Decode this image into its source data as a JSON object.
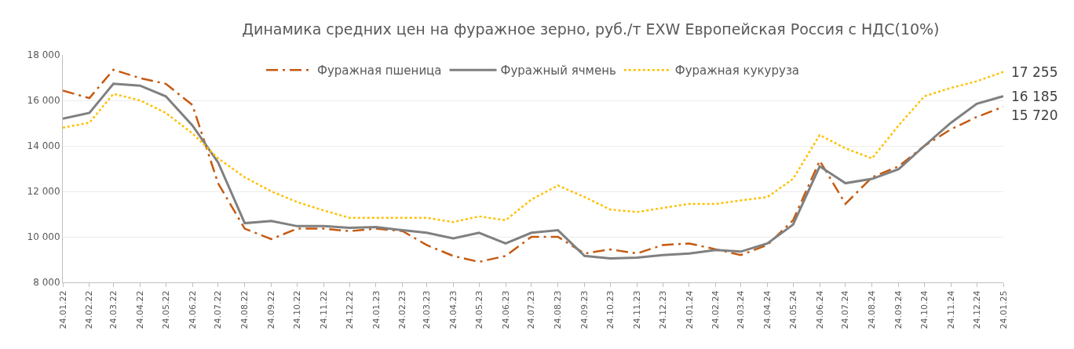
{
  "chart_data": {
    "type": "line",
    "title": "Динамика средних цен на фуражное зерно, руб./т EXW Европейская Россия с НДС(10%)",
    "x": [
      "2022-01-24",
      "2022-02-24",
      "2022-03-24",
      "2022-04-24",
      "2022-05-24",
      "2022-06-24",
      "2022-07-24",
      "2022-08-24",
      "2022-09-24",
      "2022-10-24",
      "2022-11-24",
      "2022-12-24",
      "2023-01-24",
      "2023-02-24",
      "2023-03-24",
      "2023-04-24",
      "2023-05-24",
      "2023-06-24",
      "2023-07-24",
      "2023-08-24",
      "2023-09-24",
      "2023-10-24",
      "2023-11-24",
      "2023-12-24",
      "2024-01-24",
      "2024-02-24",
      "2024-03-24",
      "2024-04-24",
      "2024-05-24",
      "2024-06-24",
      "2024-07-24",
      "2024-08-24",
      "2024-09-24",
      "2024-10-24",
      "2024-11-24",
      "2024-12-24",
      "2025-01-24"
    ],
    "series": [
      {
        "name": "Фуражная пшеница",
        "color": "#c55a11",
        "line_style": "dashed",
        "values": [
          16430,
          16100,
          17350,
          16980,
          16730,
          15800,
          12350,
          10360,
          9900,
          10360,
          10360,
          10250,
          10360,
          10250,
          9640,
          9160,
          8900,
          9160,
          10000,
          10000,
          9270,
          9450,
          9270,
          9640,
          9710,
          9450,
          9200,
          9640,
          10730,
          13350,
          11450,
          12620,
          13100,
          14000,
          14730,
          15270,
          15720
        ]
      },
      {
        "name": "Фуражный ячмень",
        "color": "#808080",
        "line_style": "solid",
        "values": [
          15200,
          15450,
          16730,
          16650,
          16180,
          14900,
          13270,
          10600,
          10700,
          10470,
          10470,
          10400,
          10430,
          10290,
          10180,
          9930,
          10180,
          9710,
          10180,
          10290,
          9160,
          9050,
          9090,
          9200,
          9270,
          9420,
          9350,
          9710,
          10540,
          13100,
          12360,
          12550,
          12980,
          14000,
          15020,
          15850,
          16185
        ]
      },
      {
        "name": "Фуражная кукуруза",
        "color": "#ffc000",
        "line_style": "dotted",
        "values": [
          14800,
          15020,
          16290,
          16000,
          15450,
          14550,
          13450,
          12620,
          12000,
          11530,
          11160,
          10840,
          10840,
          10840,
          10840,
          10650,
          10900,
          10730,
          11640,
          12260,
          11750,
          11200,
          11090,
          11270,
          11450,
          11450,
          11600,
          11750,
          12550,
          14480,
          13890,
          13450,
          14900,
          16180,
          16550,
          16840,
          17255
        ]
      }
    ],
    "annotations": [
      {
        "text": "17 255",
        "x": "2025-01-24",
        "y": 17255
      },
      {
        "text": "16 185",
        "x": "2025-01-24",
        "y": 16185
      },
      {
        "text": "15 720",
        "x": "2025-01-24",
        "y": 15720
      }
    ],
    "xlim": [
      "2022-01-24",
      "2025-01-24"
    ],
    "xticks": [
      {
        "value": "2022-01-24",
        "label": "24.01.22"
      },
      {
        "value": "2022-02-24",
        "label": "24.02.22"
      },
      {
        "value": "2022-03-24",
        "label": "24.03.22"
      },
      {
        "value": "2022-04-24",
        "label": "24.04.22"
      },
      {
        "value": "2022-05-24",
        "label": "24.05.22"
      },
      {
        "value": "2022-06-24",
        "label": "24.06.22"
      },
      {
        "value": "2022-07-24",
        "label": "24.07.22"
      },
      {
        "value": "2022-08-24",
        "label": "24.08.22"
      },
      {
        "value": "2022-09-24",
        "label": "24.09.22"
      },
      {
        "value": "2022-10-24",
        "label": "24.10.22"
      },
      {
        "value": "2022-11-24",
        "label": "24.11.22"
      },
      {
        "value": "2022-12-24",
        "label": "24.12.22"
      },
      {
        "value": "2023-01-24",
        "label": "24.01.23"
      },
      {
        "value": "2023-02-24",
        "label": "24.02.23"
      },
      {
        "value": "2023-03-24",
        "label": "24.03.23"
      },
      {
        "value": "2023-04-24",
        "label": "24.04.23"
      },
      {
        "value": "2023-05-24",
        "label": "24.05.23"
      },
      {
        "value": "2023-06-24",
        "label": "24.06.23"
      },
      {
        "value": "2023-07-24",
        "label": "24.07.23"
      },
      {
        "value": "2023-08-24",
        "label": "24.08.23"
      },
      {
        "value": "2023-09-24",
        "label": "24.09.23"
      },
      {
        "value": "2023-10-24",
        "label": "24.10.23"
      },
      {
        "value": "2023-11-24",
        "label": "24.11.23"
      },
      {
        "value": "2023-12-24",
        "label": "24.12.23"
      },
      {
        "value": "2024-01-24",
        "label": "24.01.24"
      },
      {
        "value": "2024-02-24",
        "label": "24.02.24"
      },
      {
        "value": "2024-03-24",
        "label": "24.03.24"
      },
      {
        "value": "2024-04-24",
        "label": "24.04.24"
      },
      {
        "value": "2024-05-24",
        "label": "24.05.24"
      },
      {
        "value": "2024-06-24",
        "label": "24.06.24"
      },
      {
        "value": "2024-07-24",
        "label": "24.07.24"
      },
      {
        "value": "2024-08-24",
        "label": "24.08.24"
      },
      {
        "value": "2024-09-24",
        "label": "24.09.24"
      },
      {
        "value": "2024-10-24",
        "label": "24.10.24"
      },
      {
        "value": "2024-11-24",
        "label": "24.11.24"
      },
      {
        "value": "2024-12-24",
        "label": "24.12.24"
      },
      {
        "value": "2025-01-24",
        "label": "24.01.25"
      }
    ],
    "ylim": [
      8000,
      18000
    ],
    "yticks": [
      {
        "value": 8000,
        "label": "8 000"
      },
      {
        "value": 10000,
        "label": "10 000"
      },
      {
        "value": 12000,
        "label": "12 000"
      },
      {
        "value": 14000,
        "label": "14 000"
      },
      {
        "value": 16000,
        "label": "16 000"
      },
      {
        "value": 18000,
        "label": "18 000"
      }
    ],
    "grid": "y",
    "legend": "top",
    "marker": "none"
  }
}
